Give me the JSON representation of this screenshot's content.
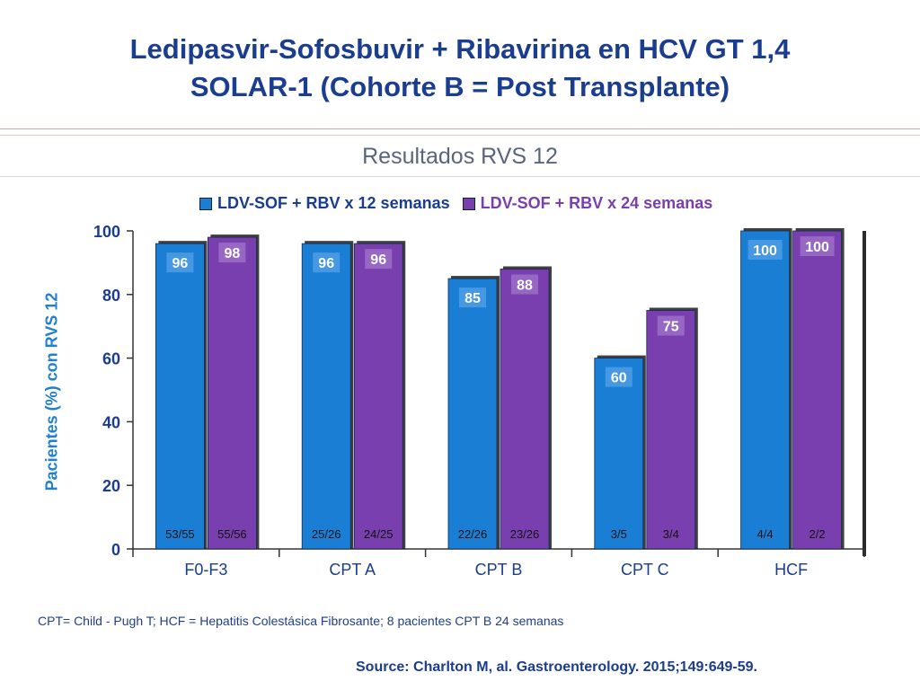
{
  "title_line1": "Ledipasvir-Sofosbuvir + Ribavirina en HCV GT 1,4",
  "title_line2": "SOLAR-1 (Cohorte B = Post Transplante)",
  "subtitle": "Resultados  RVS 12",
  "footnote": "CPT= Child - Pugh T; HCF = Hepatitis Colestásica Fibrosante;  8 pacientes  CPT B 24 semanas",
  "source": "Source: Charlton M, al. Gastroenterology. 2015;149:649-59.",
  "colors": {
    "series1": "#1a7fd4",
    "series2": "#7a3fae",
    "title": "#1a3d8f",
    "axis": "#1f7fd0"
  },
  "chart_data": {
    "type": "bar",
    "categories": [
      "F0-F3",
      "CPT A",
      "CPT B",
      "CPT C",
      "HCF"
    ],
    "series": [
      {
        "name": "LDV-SOF + RBV x 12 semanas",
        "values": [
          96,
          96,
          85,
          60,
          100
        ],
        "counts": [
          "53/55",
          "25/26",
          "22/26",
          "3/5",
          "4/4"
        ]
      },
      {
        "name": "LDV-SOF + RBV x 24 semanas",
        "values": [
          98,
          96,
          88,
          75,
          100
        ],
        "counts": [
          "55/56",
          "24/25",
          "23/26",
          "3/4",
          "2/2"
        ]
      }
    ],
    "ylabel": "Pacientes  (%) con RVS 12",
    "ylim": [
      0,
      100
    ],
    "yticks": [
      0,
      20,
      40,
      60,
      80,
      100
    ],
    "legend_position": "top",
    "grid": false
  }
}
